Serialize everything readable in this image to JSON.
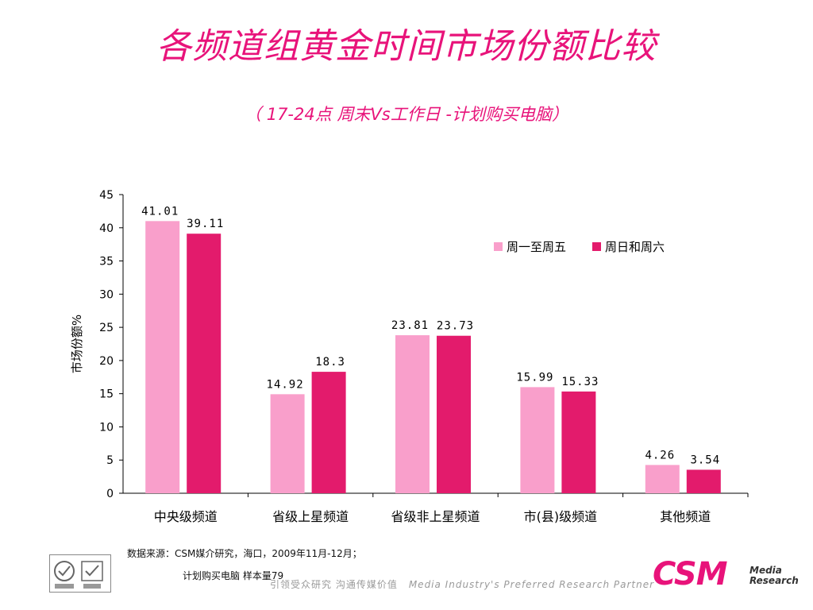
{
  "title": "各频道组黄金时间市场份额比较",
  "subtitle": "（ 17-24点 周末Vs工作日 -计划购买电脑）",
  "source_line": "数据来源：CSM媒介研究，海口，2009年11月-12月；",
  "sample_line": "计划购买电脑 样本量79",
  "tagline": {
    "cn": "引领受众研究  沟通传媒价值",
    "en": "Media Industry's Preferred Research Partner"
  },
  "logo": {
    "main": "CSM",
    "line1": "Media",
    "line2": "Research"
  },
  "colors": {
    "accent": "#e8137a",
    "series1": "#f99fcb",
    "series2": "#e31b6c"
  },
  "chart_data": {
    "type": "bar",
    "categories": [
      "中央级频道",
      "省级上星频道",
      "省级非上星频道",
      "市(县)级频道",
      "其他频道"
    ],
    "series": [
      {
        "name": "周一至周五",
        "values": [
          41.01,
          14.92,
          23.81,
          15.99,
          4.26
        ],
        "labels": [
          "41.01",
          "14.92",
          "23.81",
          "15.99",
          "4.26"
        ]
      },
      {
        "name": "周日和周六",
        "values": [
          39.11,
          18.3,
          23.73,
          15.33,
          3.54
        ],
        "labels": [
          "39.11",
          "18.3",
          "23.73",
          "15.33",
          "3.54"
        ]
      }
    ],
    "ylabel": "市场份额%",
    "xlabel": "",
    "ylim": [
      0,
      45
    ],
    "yticks": [
      0,
      5,
      10,
      15,
      20,
      25,
      30,
      35,
      40,
      45
    ],
    "grid": false,
    "legend": "top-right"
  }
}
